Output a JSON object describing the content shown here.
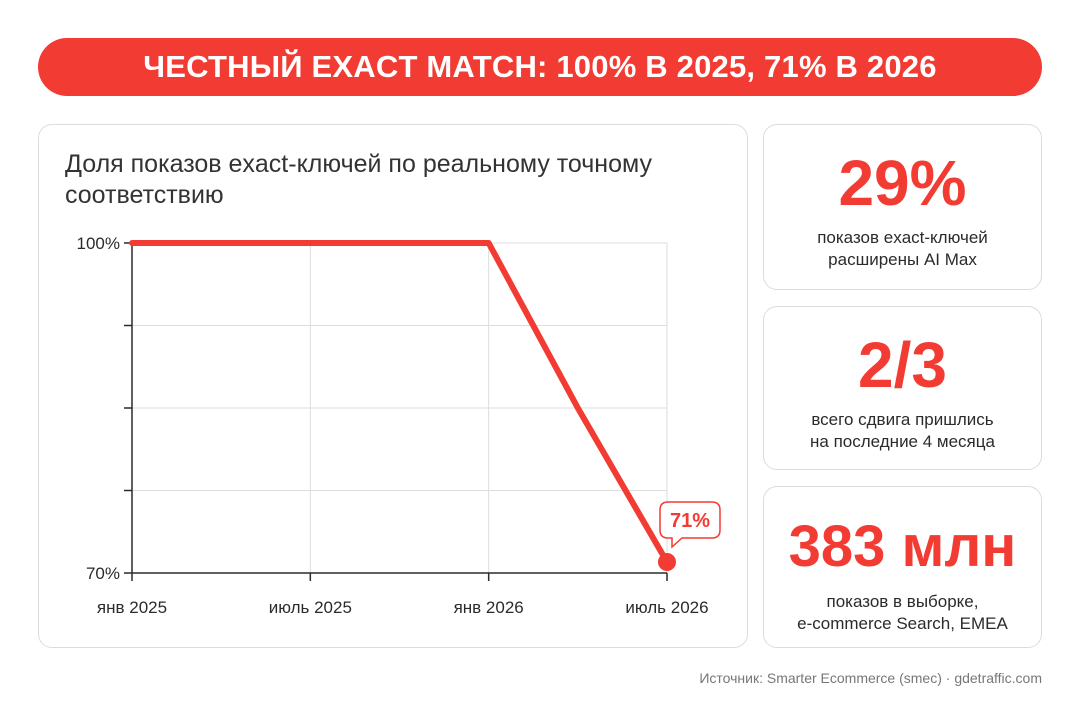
{
  "banner": {
    "title": "ЧЕСТНЫЙ EXACT MATCH: 100% В 2025, 71% В 2026"
  },
  "chart_data": {
    "type": "line",
    "title": "Доля показов exact-ключей по реальному точному соответствию",
    "x_ticks": [
      {
        "label": "янв 2025",
        "month": 0
      },
      {
        "label": "июль 2025",
        "month": 6
      },
      {
        "label": "янв 2026",
        "month": 12
      },
      {
        "label": "июль 2026",
        "month": 18
      }
    ],
    "y_ticks": [
      {
        "label": "100%",
        "value": 100
      },
      {
        "label": "",
        "value": 92.5
      },
      {
        "label": "",
        "value": 85
      },
      {
        "label": "",
        "value": 77.5
      },
      {
        "label": "70%",
        "value": 70
      }
    ],
    "ylim": [
      70,
      100
    ],
    "grid": true,
    "series": [
      {
        "color": "#f23b33",
        "points": [
          {
            "x": "янв 2025",
            "y": 100
          },
          {
            "x": "янв 2026",
            "y": 100
          },
          {
            "x": "апр 2026",
            "y": 85
          },
          {
            "x": "июль 2026",
            "y": 71
          }
        ]
      }
    ],
    "annotation": {
      "label": "71%",
      "x": "июль 2026",
      "y": 71
    }
  },
  "stats": [
    {
      "value": "29%",
      "description": [
        "показов exact-ключей",
        "расширены AI Max"
      ]
    },
    {
      "value": "2/3",
      "description": [
        "всего сдвига пришлись",
        "на последние 4 месяца"
      ]
    },
    {
      "value": "383 млн",
      "description": [
        "показов в выборке,",
        "e-commerce Search, EMEA"
      ]
    }
  ],
  "source": "Источник: Smarter Ecommerce (smec) · gdetraffic.com",
  "colors": {
    "accent": "#f23b33",
    "grid": "#dddddd",
    "axis": "#2b2b2b"
  }
}
